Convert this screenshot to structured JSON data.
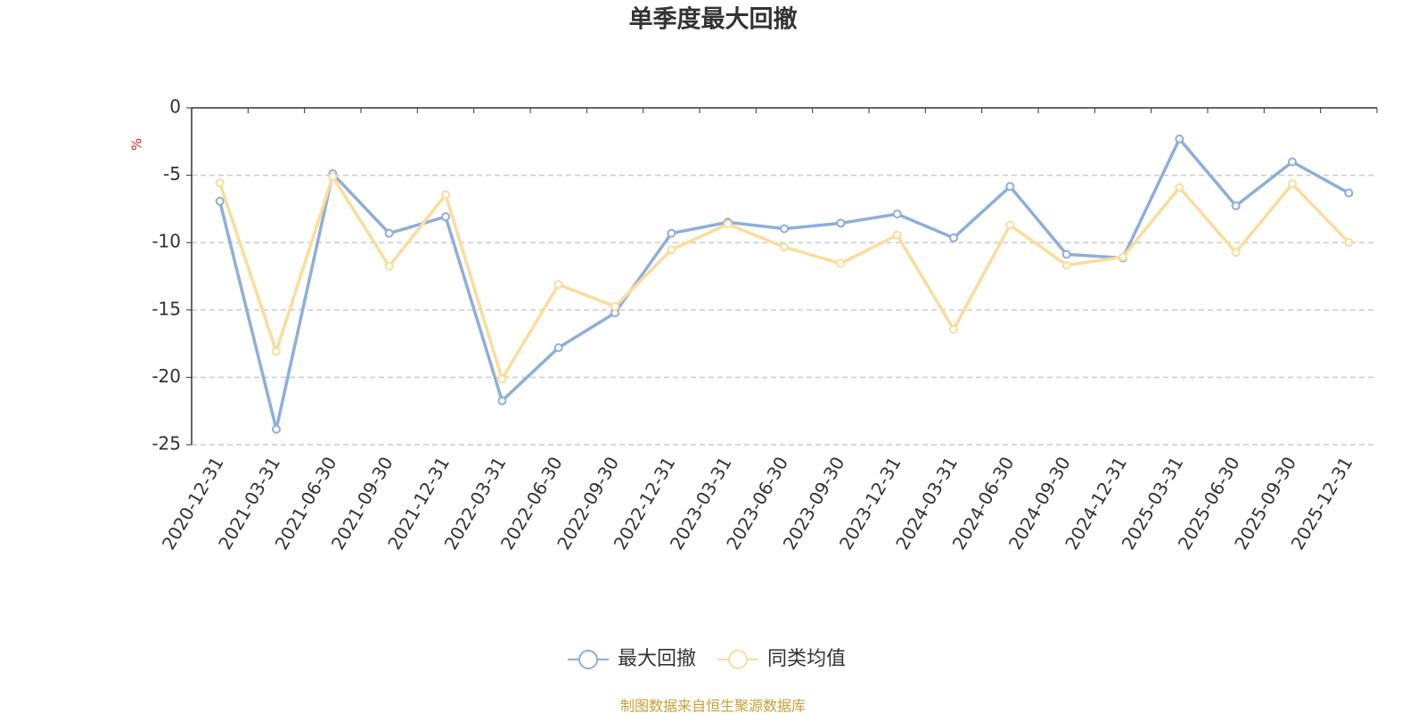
{
  "chart_data": {
    "type": "line",
    "title": "单季度最大回撤",
    "y_label": "%",
    "categories": [
      "2020-12-31",
      "2021-03-31",
      "2021-06-30",
      "2021-09-30",
      "2021-12-31",
      "2022-03-31",
      "2022-06-30",
      "2022-09-30",
      "2022-12-31",
      "2023-03-31",
      "2023-06-30",
      "2023-09-30",
      "2023-12-31",
      "2024-03-31",
      "2024-06-30",
      "2024-09-30",
      "2024-12-31",
      "2025-03-31",
      "2025-06-30",
      "2025-09-30",
      "2025-12-31"
    ],
    "series": [
      {
        "name": "最大回撤",
        "color": "#8eaedb",
        "values": [
          -6.93,
          -23.85,
          -4.89,
          -9.31,
          -8.08,
          -21.74,
          -17.8,
          -15.22,
          -9.31,
          -8.49,
          -8.97,
          -8.56,
          -7.88,
          -9.65,
          -5.84,
          -10.87,
          -11.14,
          -2.31,
          -7.27,
          -4.01,
          -6.32
        ]
      },
      {
        "name": "同类均值",
        "color": "#fbdc9a",
        "values": [
          -5.57,
          -18.07,
          -5.1,
          -11.75,
          -6.45,
          -20.11,
          -13.11,
          -14.74,
          -10.53,
          -8.63,
          -10.33,
          -11.55,
          -9.44,
          -16.44,
          -8.7,
          -11.68,
          -11.07,
          -5.91,
          -10.73,
          -5.64,
          -9.99
        ]
      }
    ],
    "ylim": [
      -25,
      0
    ],
    "yticks": [
      0,
      -5,
      -10,
      -15,
      -20,
      -25
    ],
    "grid": true,
    "source": "制图数据来自恒生聚源数据库"
  }
}
